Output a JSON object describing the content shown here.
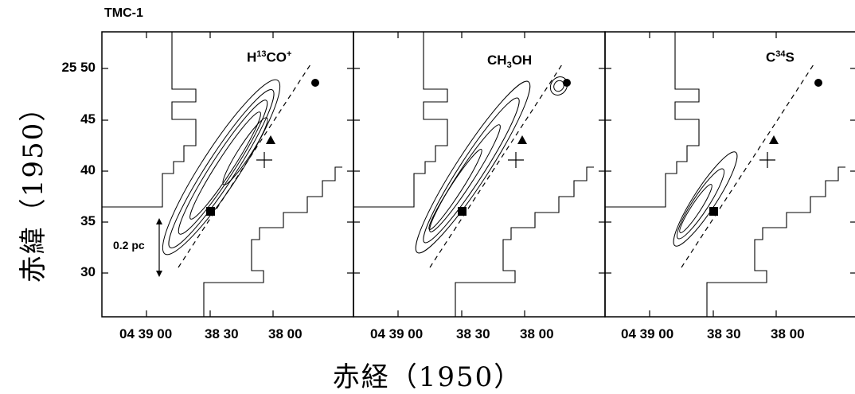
{
  "figure": {
    "title": "TMC-1",
    "ylabel": "赤緯（1950）",
    "xlabel": "赤経（1950）",
    "scale_label": "0.2 pc"
  },
  "chart_data": {
    "type": "contour-map",
    "panels": [
      {
        "label": "H13CO+",
        "label_parts": [
          "H",
          "13",
          "CO",
          "+"
        ]
      },
      {
        "label": "CH3OH",
        "label_parts": [
          "CH",
          "3",
          "OH"
        ]
      },
      {
        "label": "C34S",
        "label_parts": [
          "C",
          "34",
          "S"
        ]
      }
    ],
    "y_ticks": [
      "25 50",
      "45",
      "40",
      "35",
      "30"
    ],
    "x_ticks": [
      "04 39 00",
      "38 30",
      "38 00"
    ],
    "ylim_arcmin": [
      25.5,
      51.5
    ],
    "xlim_label": "RA 04h39m10s – 04h37m40s",
    "markers": [
      {
        "symbol": "square",
        "ra": "04 38 33",
        "dec_arcmin": 35.5
      },
      {
        "symbol": "triangle",
        "ra": "04 38 10",
        "dec_arcmin": 42.5
      },
      {
        "symbol": "circle",
        "ra": "04 37 51",
        "dec_arcmin": 48.3
      },
      {
        "symbol": "plus",
        "ra": "04 38 02",
        "dec_arcmin": 40.8
      }
    ]
  }
}
